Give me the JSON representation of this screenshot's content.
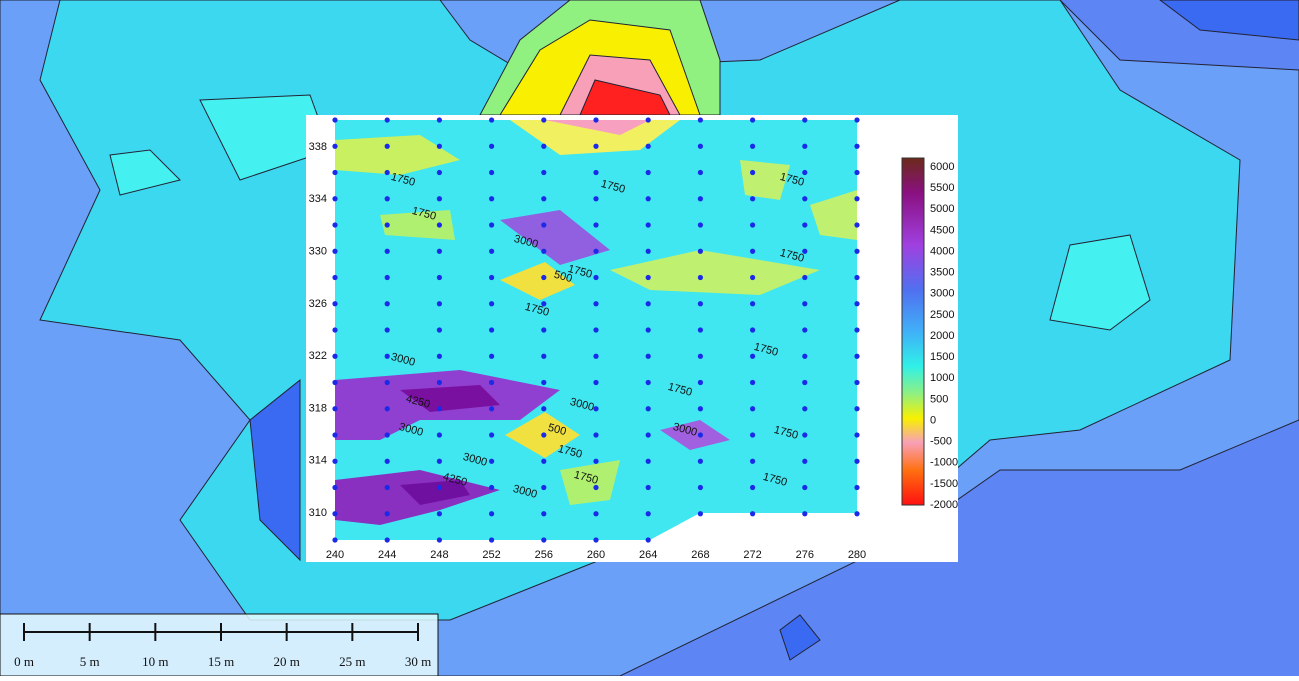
{
  "plot": {
    "xticks": [
      240,
      244,
      248,
      252,
      256,
      260,
      264,
      268,
      272,
      276,
      280
    ],
    "yticks": [
      310,
      314,
      318,
      322,
      326,
      330,
      334,
      338
    ],
    "contour_labels": [
      1750,
      1750,
      1750,
      1750,
      3000,
      1750,
      500,
      1750,
      1750,
      1750,
      3000,
      4250,
      3000,
      1750,
      3000,
      500,
      3000,
      1750,
      1750,
      3000,
      4250,
      3000,
      1750,
      1750
    ],
    "colorbar_labels": [
      6000,
      5500,
      5000,
      4500,
      4000,
      3500,
      3000,
      2500,
      2000,
      1500,
      1000,
      500,
      0,
      -500,
      -1000,
      -1500,
      -2000
    ]
  },
  "scale_bar": {
    "labels": [
      "0 m",
      "5 m",
      "10 m",
      "15 m",
      "20 m",
      "25 m",
      "30 m"
    ]
  }
}
